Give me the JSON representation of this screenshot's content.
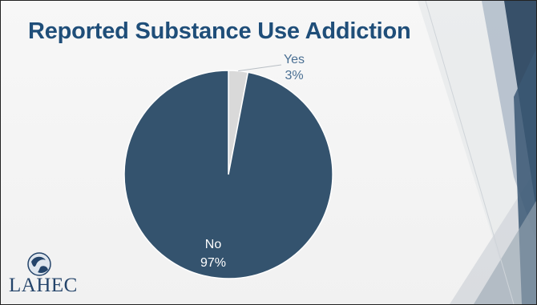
{
  "slide": {
    "title": "Reported Substance Use Addiction"
  },
  "colors": {
    "title": "#1f4e79",
    "no_slice": "#34536e",
    "yes_slice": "#d9d9d9",
    "label_yes": "#4a6f93",
    "label_no": "#ffffff"
  },
  "logo": {
    "text": "LAHEC",
    "icon": "globe-logo-icon"
  },
  "chart_data": {
    "type": "pie",
    "categories": [
      "Yes",
      "No"
    ],
    "values": [
      3,
      97
    ],
    "labels": [
      "3%",
      "97%"
    ],
    "title": "Reported Substance Use Addiction"
  }
}
